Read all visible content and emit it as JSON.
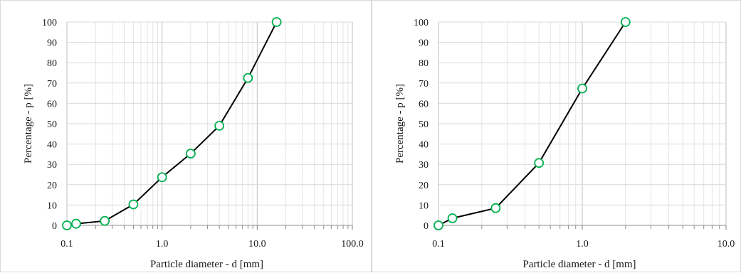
{
  "chart_data": [
    {
      "type": "scatter",
      "xscale": "log",
      "xlim": [
        0.1,
        100
      ],
      "ylim": [
        0,
        100
      ],
      "xticks": [
        "0.1",
        "1.0",
        "10.0",
        "100.0"
      ],
      "yticks": [
        "0",
        "10",
        "20",
        "30",
        "40",
        "50",
        "60",
        "70",
        "80",
        "90",
        "100"
      ],
      "xlabel": "Particle diameter - d [mm]",
      "ylabel": "Percentage - p [%]",
      "grid": true,
      "line_color": "#000000",
      "marker_color": "#00b050",
      "x": [
        0.1,
        0.125,
        0.25,
        0.5,
        1,
        2,
        4,
        8,
        16
      ],
      "y": [
        0,
        0.8,
        2.2,
        10.3,
        23.7,
        35.3,
        49,
        72.5,
        100
      ]
    },
    {
      "type": "scatter",
      "xscale": "log",
      "xlim": [
        0.1,
        10
      ],
      "ylim": [
        0,
        100
      ],
      "xticks": [
        "0.1",
        "1.0",
        "10.0"
      ],
      "yticks": [
        "0",
        "10",
        "20",
        "30",
        "40",
        "50",
        "60",
        "70",
        "80",
        "90",
        "100"
      ],
      "xlabel": "Particle diameter - d [mm]",
      "ylabel": "Percentage - p [%]",
      "grid": true,
      "line_color": "#000000",
      "marker_color": "#00b050",
      "x": [
        0.1,
        0.125,
        0.25,
        0.5,
        1,
        2
      ],
      "y": [
        0,
        3.5,
        8.5,
        30.7,
        67.3,
        100
      ]
    }
  ]
}
